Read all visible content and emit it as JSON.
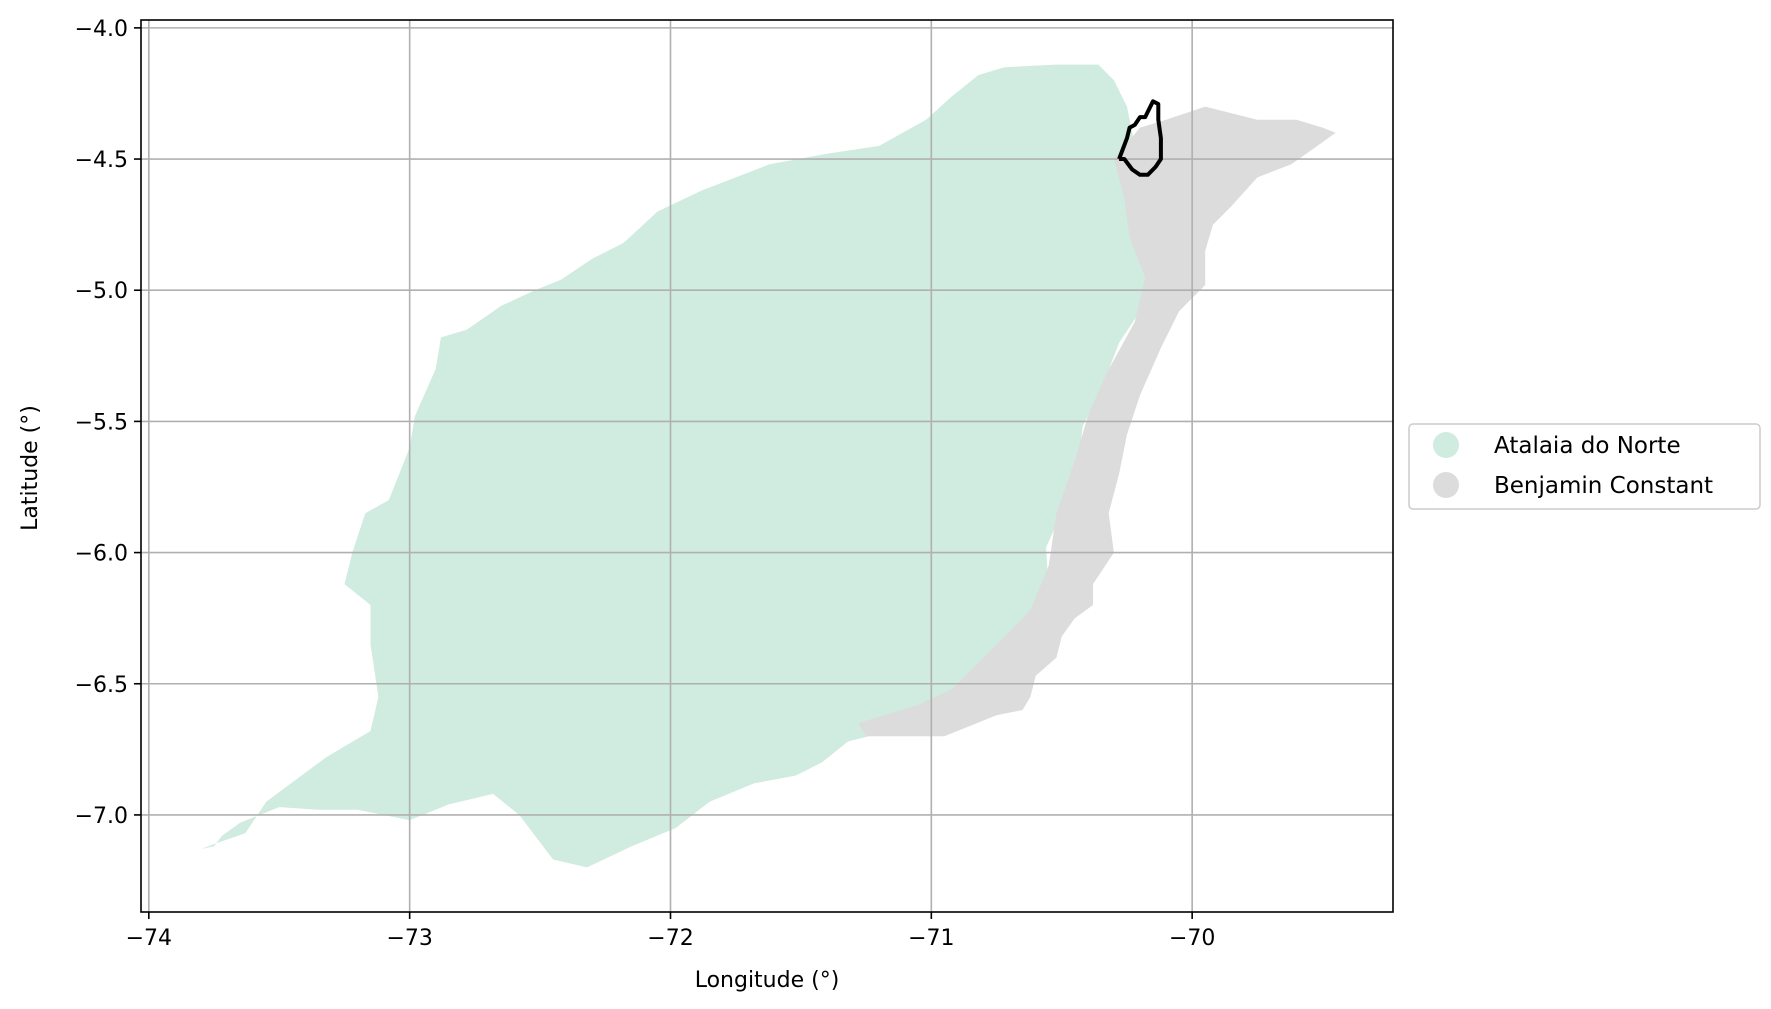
{
  "chart_data": {
    "type": "map",
    "xlabel": "Longitude (°)",
    "ylabel": "Latitude (°)",
    "xlim": [
      -74.03,
      -69.23
    ],
    "ylim": [
      -7.37,
      -3.97
    ],
    "x_ticks": [
      -74,
      -73,
      -72,
      -71,
      -70
    ],
    "x_tick_labels": [
      "−74",
      "−73",
      "−72",
      "−71",
      "−70"
    ],
    "y_ticks": [
      -4.0,
      -4.5,
      -5.0,
      -5.5,
      -6.0,
      -6.5,
      -7.0
    ],
    "y_tick_labels": [
      "−4.0",
      "−4.5",
      "−5.0",
      "−5.5",
      "−6.0",
      "−6.5",
      "−7.0"
    ],
    "grid": true,
    "legend_position": "center-right, outside plot",
    "regions": [
      {
        "name": "Atalaia do Norte",
        "color": "#d0ebdf",
        "outline": [
          [
            -73.8,
            -7.13
          ],
          [
            -73.72,
            -7.1
          ],
          [
            -73.63,
            -7.07
          ],
          [
            -73.55,
            -6.95
          ],
          [
            -73.32,
            -6.78
          ],
          [
            -73.15,
            -6.68
          ],
          [
            -73.12,
            -6.55
          ],
          [
            -73.15,
            -6.35
          ],
          [
            -73.15,
            -6.2
          ],
          [
            -73.25,
            -6.12
          ],
          [
            -73.22,
            -6.0
          ],
          [
            -73.17,
            -5.85
          ],
          [
            -73.08,
            -5.8
          ],
          [
            -73.0,
            -5.6
          ],
          [
            -72.98,
            -5.48
          ],
          [
            -72.9,
            -5.3
          ],
          [
            -72.88,
            -5.18
          ],
          [
            -72.78,
            -5.15
          ],
          [
            -72.65,
            -5.06
          ],
          [
            -72.52,
            -5.0
          ],
          [
            -72.42,
            -4.96
          ],
          [
            -72.3,
            -4.88
          ],
          [
            -72.18,
            -4.82
          ],
          [
            -72.05,
            -4.7
          ],
          [
            -71.88,
            -4.62
          ],
          [
            -71.62,
            -4.52
          ],
          [
            -71.4,
            -4.48
          ],
          [
            -71.2,
            -4.45
          ],
          [
            -71.02,
            -4.35
          ],
          [
            -70.92,
            -4.26
          ],
          [
            -70.82,
            -4.18
          ],
          [
            -70.72,
            -4.15
          ],
          [
            -70.52,
            -4.14
          ],
          [
            -70.36,
            -4.14
          ],
          [
            -70.3,
            -4.2
          ],
          [
            -70.25,
            -4.3
          ],
          [
            -70.22,
            -4.45
          ],
          [
            -70.2,
            -4.55
          ],
          [
            -70.23,
            -4.6
          ],
          [
            -70.24,
            -4.7
          ],
          [
            -70.2,
            -4.82
          ],
          [
            -70.15,
            -4.95
          ],
          [
            -70.2,
            -5.08
          ],
          [
            -70.28,
            -5.2
          ],
          [
            -70.35,
            -5.38
          ],
          [
            -70.42,
            -5.52
          ],
          [
            -70.44,
            -5.7
          ],
          [
            -70.5,
            -5.85
          ],
          [
            -70.56,
            -5.98
          ],
          [
            -70.55,
            -6.15
          ],
          [
            -70.6,
            -6.25
          ],
          [
            -70.72,
            -6.4
          ],
          [
            -70.85,
            -6.55
          ],
          [
            -71.0,
            -6.6
          ],
          [
            -71.12,
            -6.67
          ],
          [
            -71.32,
            -6.72
          ],
          [
            -71.42,
            -6.8
          ],
          [
            -71.52,
            -6.85
          ],
          [
            -71.68,
            -6.88
          ],
          [
            -71.85,
            -6.95
          ],
          [
            -71.98,
            -7.05
          ],
          [
            -72.15,
            -7.12
          ],
          [
            -72.32,
            -7.2
          ],
          [
            -72.45,
            -7.17
          ],
          [
            -72.58,
            -7.0
          ],
          [
            -72.68,
            -6.92
          ],
          [
            -72.85,
            -6.96
          ],
          [
            -73.0,
            -7.02
          ],
          [
            -73.2,
            -6.98
          ],
          [
            -73.35,
            -6.98
          ],
          [
            -73.5,
            -6.97
          ],
          [
            -73.65,
            -7.03
          ],
          [
            -73.72,
            -7.08
          ],
          [
            -73.75,
            -7.12
          ],
          [
            -73.8,
            -7.13
          ]
        ]
      },
      {
        "name": "Benjamin Constant",
        "color": "#dcdcdc",
        "outline": [
          [
            -70.3,
            -4.5
          ],
          [
            -70.2,
            -4.38
          ],
          [
            -70.1,
            -4.35
          ],
          [
            -69.95,
            -4.3
          ],
          [
            -69.75,
            -4.35
          ],
          [
            -69.6,
            -4.35
          ],
          [
            -69.5,
            -4.38
          ],
          [
            -69.45,
            -4.4
          ],
          [
            -69.52,
            -4.45
          ],
          [
            -69.62,
            -4.52
          ],
          [
            -69.75,
            -4.57
          ],
          [
            -69.85,
            -4.68
          ],
          [
            -69.92,
            -4.75
          ],
          [
            -69.95,
            -4.85
          ],
          [
            -69.95,
            -4.98
          ],
          [
            -70.05,
            -5.08
          ],
          [
            -70.12,
            -5.22
          ],
          [
            -70.2,
            -5.4
          ],
          [
            -70.25,
            -5.55
          ],
          [
            -70.28,
            -5.7
          ],
          [
            -70.32,
            -5.85
          ],
          [
            -70.3,
            -6.0
          ],
          [
            -70.38,
            -6.12
          ],
          [
            -70.38,
            -6.2
          ],
          [
            -70.45,
            -6.25
          ],
          [
            -70.5,
            -6.32
          ],
          [
            -70.52,
            -6.4
          ],
          [
            -70.6,
            -6.47
          ],
          [
            -70.62,
            -6.55
          ],
          [
            -70.65,
            -6.6
          ],
          [
            -70.75,
            -6.62
          ],
          [
            -70.85,
            -6.66
          ],
          [
            -70.95,
            -6.7
          ],
          [
            -71.05,
            -6.7
          ],
          [
            -71.15,
            -6.7
          ],
          [
            -71.25,
            -6.7
          ],
          [
            -71.28,
            -6.65
          ],
          [
            -71.18,
            -6.62
          ],
          [
            -71.05,
            -6.58
          ],
          [
            -70.92,
            -6.52
          ],
          [
            -70.78,
            -6.38
          ],
          [
            -70.62,
            -6.22
          ],
          [
            -70.55,
            -6.05
          ],
          [
            -70.52,
            -5.85
          ],
          [
            -70.45,
            -5.65
          ],
          [
            -70.4,
            -5.48
          ],
          [
            -70.33,
            -5.32
          ],
          [
            -70.22,
            -5.12
          ],
          [
            -70.18,
            -4.95
          ],
          [
            -70.24,
            -4.8
          ],
          [
            -70.26,
            -4.65
          ],
          [
            -70.3,
            -4.5
          ]
        ]
      }
    ],
    "highlight_outline": [
      [
        -70.28,
        -4.5
      ],
      [
        -70.25,
        -4.42
      ],
      [
        -70.24,
        -4.38
      ],
      [
        -70.22,
        -4.37
      ],
      [
        -70.2,
        -4.34
      ],
      [
        -70.18,
        -4.34
      ],
      [
        -70.17,
        -4.32
      ],
      [
        -70.15,
        -4.28
      ],
      [
        -70.13,
        -4.29
      ],
      [
        -70.13,
        -4.35
      ],
      [
        -70.12,
        -4.42
      ],
      [
        -70.12,
        -4.5
      ],
      [
        -70.14,
        -4.53
      ],
      [
        -70.17,
        -4.56
      ],
      [
        -70.2,
        -4.56
      ],
      [
        -70.23,
        -4.54
      ],
      [
        -70.26,
        -4.5
      ],
      [
        -70.28,
        -4.5
      ]
    ],
    "legend": [
      {
        "label": "Atalaia do Norte",
        "color": "#d0ebdf"
      },
      {
        "label": "Benjamin Constant",
        "color": "#dcdcdc"
      }
    ],
    "grid_color": "#b0b0b0",
    "highlight_color": "#000000"
  }
}
